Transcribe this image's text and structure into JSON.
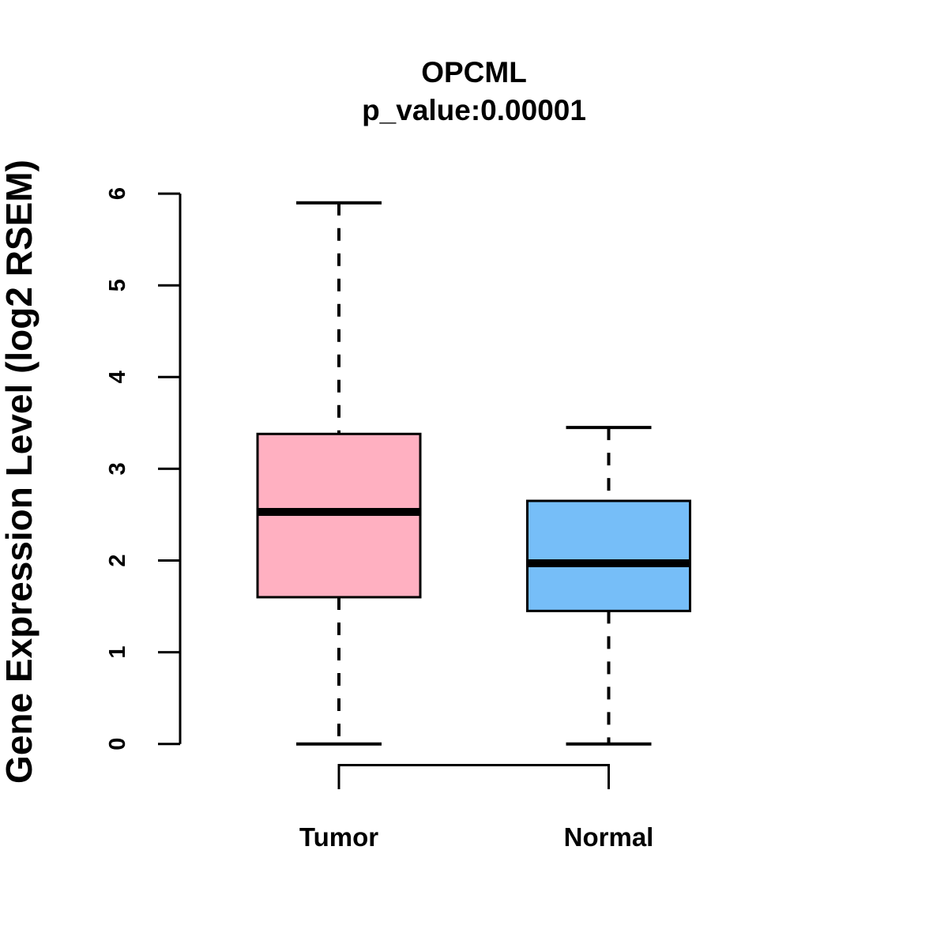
{
  "chart_data": {
    "type": "boxplot",
    "title": "OPCML",
    "subtitle": "p_value:0.00001",
    "ylabel": "Gene Expression Level (log2 RSEM)",
    "xlabel": "",
    "ylim": [
      0,
      6
    ],
    "yticks": [
      0,
      1,
      2,
      3,
      4,
      5,
      6
    ],
    "grid": false,
    "legend": "none",
    "background_color": "#FFFFFF",
    "line_color": "#000000",
    "categories": [
      "Tumor",
      "Normal"
    ],
    "series": [
      {
        "name": "Tumor",
        "color": "#FFB0C1",
        "whisker_low": 0,
        "q1": 1.6,
        "median": 2.53,
        "q3": 3.38,
        "whisker_high": 5.9
      },
      {
        "name": "Normal",
        "color": "#76BEF8",
        "whisker_low": 0,
        "q1": 1.45,
        "median": 1.97,
        "q3": 2.65,
        "whisker_high": 3.45
      }
    ],
    "annotations": {
      "comparison_bracket_between": [
        "Tumor",
        "Normal"
      ]
    }
  }
}
